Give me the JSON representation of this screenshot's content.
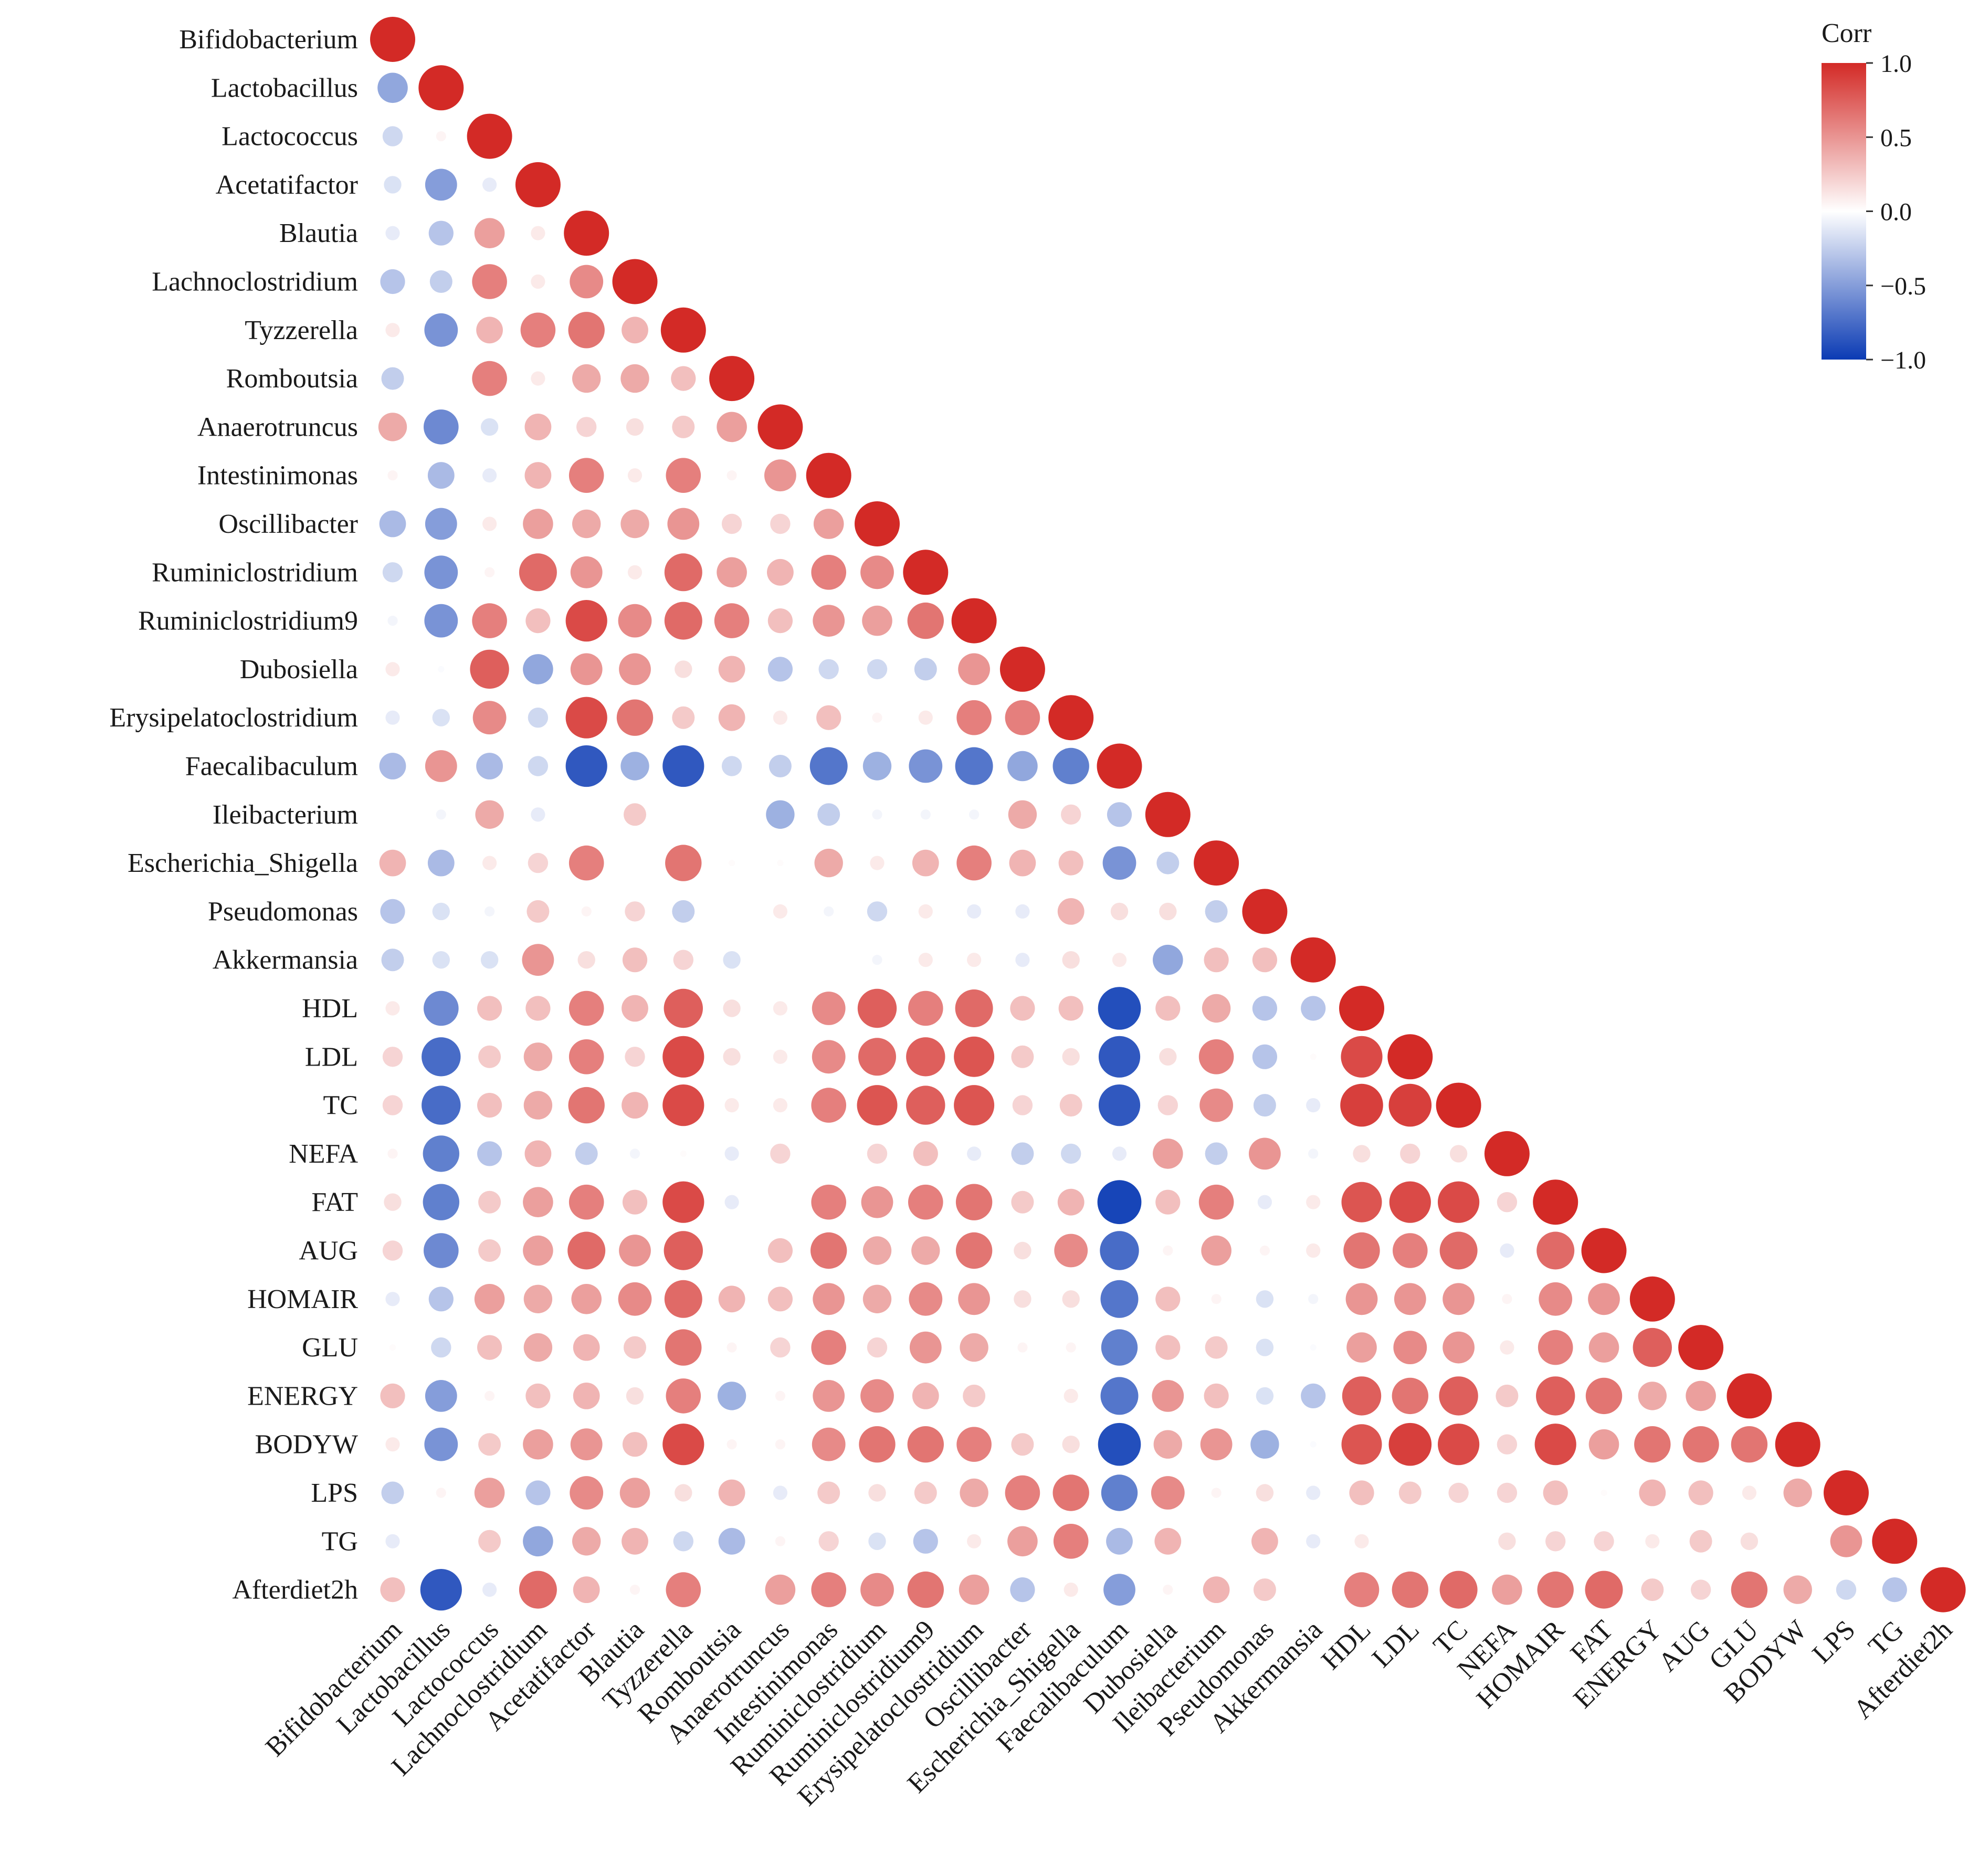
{
  "chart_data": {
    "type": "heatmap",
    "style": "circle-correlogram-lower-triangle",
    "variables": [
      "Bifidobacterium",
      "Lactobacillus",
      "Lactococcus",
      "Acetatifactor",
      "Blautia",
      "Lachnoclostridium",
      "Tyzzerella",
      "Romboutsia",
      "Anaerotruncus",
      "Intestinimonas",
      "Oscillibacter",
      "Ruminiclostridium",
      "Ruminiclostridium9",
      "Dubosiella",
      "Erysipelatoclostridium",
      "Faecalibaculum",
      "Ileibacterium",
      "Escherichia_Shigella",
      "Pseudomonas",
      "Akkermansia",
      "HDL",
      "LDL",
      "TC",
      "NEFA",
      "FAT",
      "AUG",
      "HOMAIR",
      "GLU",
      "ENERGY",
      "BODYW",
      "LPS",
      "TG",
      "Afterdiet2h"
    ],
    "x_labels": [
      "Bifidobacterium",
      "Lactobacillus",
      "Lactococcus",
      "Lachnoclostridium",
      "Acetatifactor",
      "Blautia",
      "Tyzzerella",
      "Romboutsia",
      "Anaerotruncus",
      "Intestinimonas",
      "Ruminiclostridium",
      "Ruminiclostridium9",
      "Erysipelatoclostridium",
      "Oscillibacter",
      "Escherichia_Shigella",
      "Faecalibaculum",
      "Dubosiella",
      "Ileibacterium",
      "Pseudomonas",
      "Akkermansia",
      "HDL",
      "LDL",
      "TC",
      "NEFA",
      "HOMAIR",
      "FAT",
      "ENERGY",
      "AUG",
      "GLU",
      "BODYW",
      "LPS",
      "TG",
      "Afterdiet2h"
    ],
    "correlations": [
      [
        1.0
      ],
      [
        -0.45,
        1.0
      ],
      [
        -0.2,
        0.05,
        1.0
      ],
      [
        -0.15,
        -0.5,
        -0.1,
        1.0
      ],
      [
        -0.1,
        -0.3,
        0.45,
        0.1,
        1.0
      ],
      [
        -0.3,
        -0.25,
        0.6,
        0.1,
        0.55,
        1.0
      ],
      [
        0.1,
        -0.55,
        0.35,
        0.6,
        0.65,
        0.35,
        1.0
      ],
      [
        -0.25,
        0.0,
        0.6,
        0.1,
        0.4,
        0.4,
        0.3,
        1.0
      ],
      [
        0.4,
        -0.6,
        -0.15,
        0.35,
        0.2,
        0.15,
        0.25,
        0.45,
        1.0
      ],
      [
        0.05,
        -0.35,
        -0.1,
        0.35,
        0.6,
        0.1,
        0.6,
        0.05,
        0.5,
        1.0
      ],
      [
        -0.35,
        -0.5,
        0.1,
        0.45,
        0.4,
        0.4,
        0.5,
        0.2,
        0.2,
        0.45,
        1.0
      ],
      [
        -0.2,
        -0.55,
        0.05,
        0.7,
        0.5,
        0.1,
        0.7,
        0.45,
        0.35,
        0.6,
        0.55,
        1.0
      ],
      [
        -0.05,
        -0.55,
        0.6,
        0.3,
        0.85,
        0.55,
        0.7,
        0.6,
        0.3,
        0.5,
        0.45,
        0.65,
        1.0
      ],
      [
        0.1,
        -0.02,
        0.75,
        -0.45,
        0.5,
        0.5,
        0.15,
        0.35,
        -0.3,
        -0.2,
        -0.2,
        -0.25,
        0.5,
        1.0
      ],
      [
        -0.1,
        -0.15,
        0.55,
        -0.2,
        0.85,
        0.65,
        0.25,
        0.35,
        0.1,
        0.3,
        0.05,
        0.1,
        0.6,
        0.6,
        1.0
      ],
      [
        -0.35,
        0.5,
        -0.35,
        -0.2,
        -0.85,
        -0.4,
        -0.85,
        -0.2,
        -0.25,
        -0.7,
        -0.4,
        -0.55,
        -0.7,
        -0.45,
        -0.65,
        1.0
      ],
      [
        0.0,
        -0.05,
        0.4,
        -0.1,
        0.0,
        0.25,
        0.0,
        0.0,
        -0.4,
        -0.25,
        -0.05,
        -0.05,
        -0.05,
        0.4,
        0.2,
        -0.3,
        1.0
      ],
      [
        0.35,
        -0.35,
        0.1,
        0.2,
        0.6,
        0.0,
        0.65,
        0.02,
        0.02,
        0.4,
        0.1,
        0.35,
        0.6,
        0.35,
        0.3,
        -0.55,
        -0.25,
        1.0
      ],
      [
        -0.3,
        -0.15,
        -0.05,
        0.25,
        0.05,
        0.2,
        -0.25,
        0.0,
        0.1,
        -0.05,
        -0.2,
        0.1,
        -0.1,
        -0.1,
        0.35,
        0.15,
        0.15,
        -0.25,
        1.0
      ],
      [
        -0.25,
        -0.15,
        -0.15,
        0.5,
        0.15,
        0.3,
        0.2,
        -0.15,
        0.0,
        0.0,
        -0.05,
        0.1,
        0.1,
        -0.1,
        0.15,
        0.1,
        -0.45,
        0.3,
        0.3,
        1.0
      ],
      [
        0.1,
        -0.6,
        0.3,
        0.3,
        0.6,
        0.35,
        0.75,
        0.15,
        0.1,
        0.55,
        0.75,
        0.6,
        0.7,
        0.3,
        0.3,
        -0.9,
        0.3,
        0.4,
        -0.3,
        -0.3,
        1.0
      ],
      [
        0.2,
        -0.75,
        0.25,
        0.4,
        0.6,
        0.2,
        0.85,
        0.15,
        0.1,
        0.55,
        0.7,
        0.75,
        0.8,
        0.25,
        0.15,
        -0.85,
        0.15,
        0.6,
        -0.3,
        0.02,
        0.85,
        1.0
      ],
      [
        0.2,
        -0.75,
        0.3,
        0.4,
        0.65,
        0.35,
        0.85,
        0.1,
        0.1,
        0.6,
        0.8,
        0.75,
        0.8,
        0.2,
        0.25,
        -0.85,
        0.2,
        0.55,
        -0.25,
        -0.1,
        0.9,
        0.9,
        1.0
      ],
      [
        0.05,
        -0.65,
        -0.3,
        0.35,
        -0.25,
        -0.05,
        0.02,
        -0.1,
        0.2,
        0.0,
        0.2,
        0.3,
        -0.1,
        -0.25,
        -0.2,
        -0.1,
        0.45,
        -0.25,
        0.5,
        -0.05,
        0.15,
        0.2,
        0.15,
        1.0
      ],
      [
        0.15,
        -0.65,
        0.25,
        0.45,
        0.6,
        0.3,
        0.85,
        -0.1,
        0.0,
        0.6,
        0.5,
        0.6,
        0.65,
        0.25,
        0.35,
        -0.95,
        0.3,
        0.6,
        -0.1,
        0.1,
        0.8,
        0.85,
        0.85,
        0.2,
        1.0
      ],
      [
        0.2,
        -0.6,
        0.25,
        0.45,
        0.7,
        0.5,
        0.75,
        0.0,
        0.3,
        0.65,
        0.4,
        0.4,
        0.65,
        0.15,
        0.55,
        -0.75,
        0.05,
        0.45,
        0.05,
        0.1,
        0.65,
        0.6,
        0.7,
        -0.1,
        0.7,
        1.0
      ],
      [
        -0.1,
        -0.3,
        0.45,
        0.4,
        0.45,
        0.55,
        0.7,
        0.35,
        0.3,
        0.5,
        0.4,
        0.55,
        0.5,
        0.15,
        0.15,
        -0.7,
        0.3,
        0.05,
        -0.15,
        -0.05,
        0.5,
        0.5,
        0.5,
        0.05,
        0.55,
        0.5,
        1.0
      ],
      [
        0.02,
        -0.2,
        0.3,
        0.4,
        0.35,
        0.25,
        0.65,
        0.05,
        0.2,
        0.6,
        0.2,
        0.5,
        0.4,
        0.05,
        0.05,
        -0.65,
        0.3,
        0.25,
        -0.15,
        -0.02,
        0.45,
        0.55,
        0.5,
        0.1,
        0.6,
        0.45,
        0.75,
        1.0
      ],
      [
        0.3,
        -0.5,
        0.05,
        0.3,
        0.35,
        0.15,
        0.6,
        -0.4,
        0.05,
        0.5,
        0.55,
        0.35,
        0.25,
        0.0,
        0.1,
        -0.7,
        0.5,
        0.3,
        -0.15,
        -0.3,
        0.75,
        0.65,
        0.75,
        0.25,
        0.75,
        0.65,
        0.4,
        0.45,
        1.0
      ],
      [
        0.1,
        -0.55,
        0.25,
        0.45,
        0.5,
        0.3,
        0.85,
        0.05,
        0.05,
        0.55,
        0.65,
        0.65,
        0.6,
        0.25,
        0.15,
        -0.9,
        0.4,
        0.5,
        -0.4,
        -0.02,
        0.8,
        0.9,
        0.85,
        0.2,
        0.85,
        0.45,
        0.65,
        0.65,
        0.65,
        1.0
      ],
      [
        -0.25,
        0.05,
        0.45,
        -0.3,
        0.55,
        0.45,
        0.15,
        0.35,
        -0.1,
        0.25,
        0.15,
        0.25,
        0.4,
        0.6,
        0.65,
        -0.65,
        0.55,
        0.05,
        0.15,
        -0.1,
        0.3,
        0.25,
        0.2,
        0.2,
        0.3,
        0.02,
        0.35,
        0.3,
        0.1,
        0.4,
        1.0
      ],
      [
        -0.1,
        0.0,
        0.25,
        -0.45,
        0.4,
        0.35,
        -0.2,
        -0.35,
        0.05,
        0.2,
        -0.15,
        -0.3,
        0.1,
        0.45,
        0.6,
        -0.35,
        0.35,
        0.0,
        0.35,
        -0.1,
        0.1,
        0.0,
        0.0,
        0.15,
        0.2,
        0.2,
        0.1,
        0.25,
        0.15,
        0.0,
        0.5,
        1.0
      ],
      [
        0.3,
        -0.85,
        -0.1,
        0.7,
        0.35,
        0.05,
        0.6,
        0.0,
        0.45,
        0.6,
        0.55,
        0.65,
        0.45,
        -0.3,
        0.1,
        -0.5,
        0.05,
        0.35,
        0.25,
        0.0,
        0.6,
        0.65,
        0.7,
        0.45,
        0.65,
        0.7,
        0.25,
        0.2,
        0.65,
        0.4,
        -0.2,
        -0.3,
        1.0
      ]
    ],
    "legend": {
      "title": "Corr",
      "ticks": [
        "1.0",
        "0.5",
        "0.0",
        "−0.5",
        "−1.0"
      ],
      "tick_values": [
        1.0,
        0.5,
        0.0,
        -0.5,
        -1.0
      ],
      "low_color": "#0b3bb4",
      "mid_color": "#ffffff",
      "high_color": "#d32a26",
      "placement": "top-right"
    }
  }
}
